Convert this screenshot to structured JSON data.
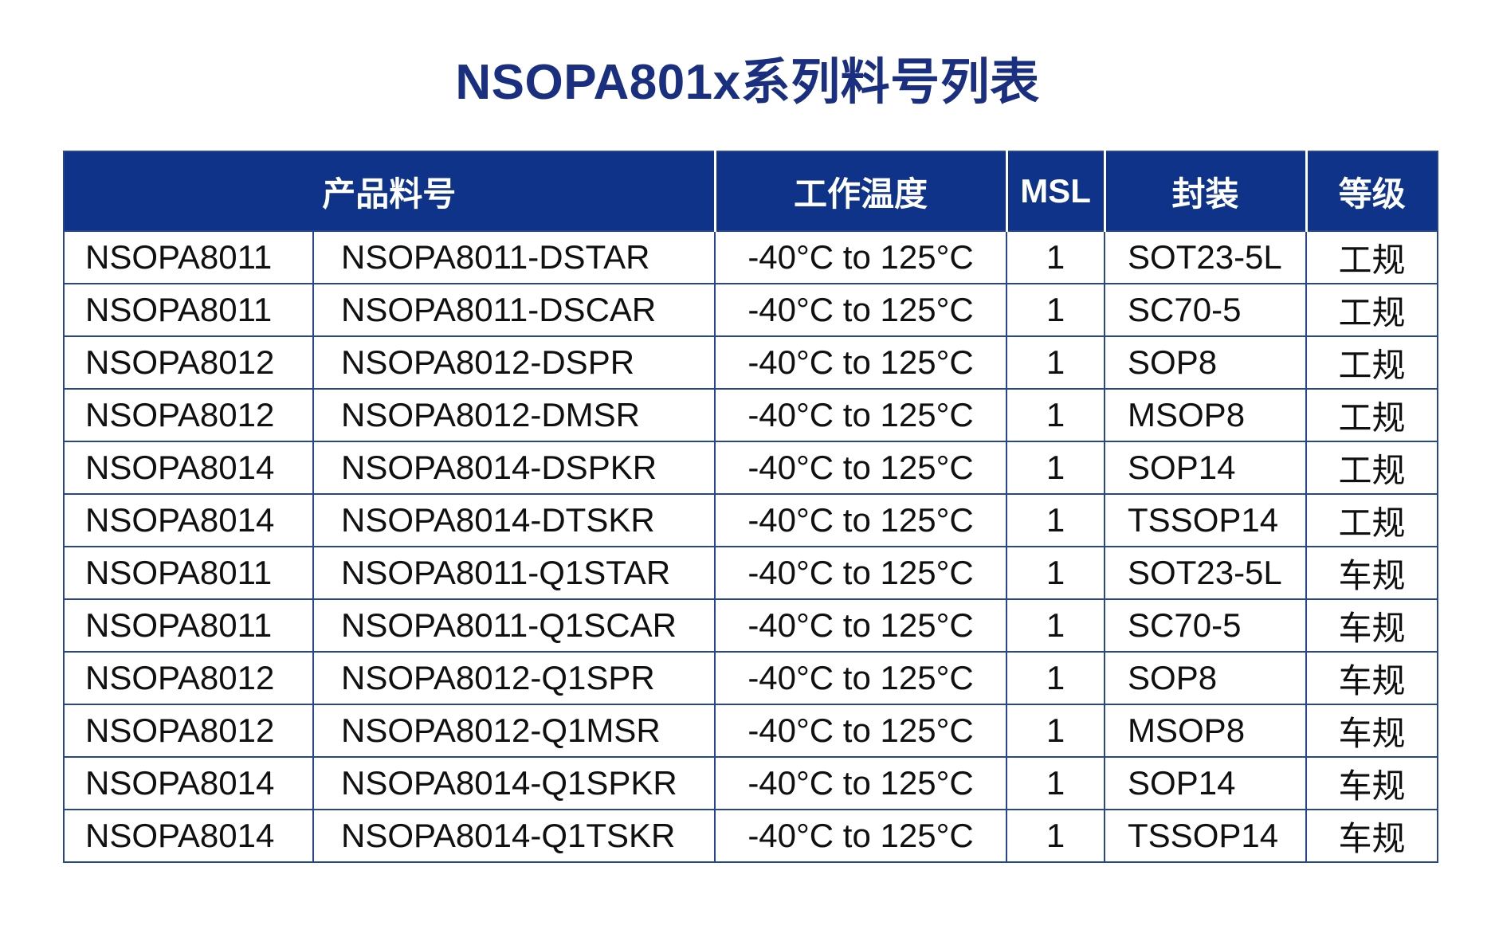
{
  "title": "NSOPA801x系列料号列表",
  "colors": {
    "header_bg": "#10338a",
    "title_text": "#1b2f80",
    "table_border": "#26449a",
    "header_text": "#ffffff",
    "body_text": "#101010"
  },
  "table": {
    "headers": {
      "product": "产品料号",
      "temp": "工作温度",
      "msl": "MSL",
      "package": "封装",
      "grade": "等级"
    },
    "rows": [
      {
        "family": "NSOPA8011",
        "part": "NSOPA8011-DSTAR",
        "temp": "-40°C to 125°C",
        "msl": "1",
        "package": "SOT23-5L",
        "grade": "工规"
      },
      {
        "family": "NSOPA8011",
        "part": "NSOPA8011-DSCAR",
        "temp": "-40°C to 125°C",
        "msl": "1",
        "package": "SC70-5",
        "grade": "工规"
      },
      {
        "family": "NSOPA8012",
        "part": "NSOPA8012-DSPR",
        "temp": "-40°C to 125°C",
        "msl": "1",
        "package": "SOP8",
        "grade": "工规"
      },
      {
        "family": "NSOPA8012",
        "part": "NSOPA8012-DMSR",
        "temp": "-40°C to 125°C",
        "msl": "1",
        "package": "MSOP8",
        "grade": "工规"
      },
      {
        "family": "NSOPA8014",
        "part": "NSOPA8014-DSPKR",
        "temp": "-40°C to 125°C",
        "msl": "1",
        "package": "SOP14",
        "grade": "工规"
      },
      {
        "family": "NSOPA8014",
        "part": "NSOPA8014-DTSKR",
        "temp": "-40°C to 125°C",
        "msl": "1",
        "package": "TSSOP14",
        "grade": "工规"
      },
      {
        "family": "NSOPA8011",
        "part": "NSOPA8011-Q1STAR",
        "temp": "-40°C to 125°C",
        "msl": "1",
        "package": "SOT23-5L",
        "grade": "车规"
      },
      {
        "family": "NSOPA8011",
        "part": "NSOPA8011-Q1SCAR",
        "temp": "-40°C to 125°C",
        "msl": "1",
        "package": "SC70-5",
        "grade": "车规"
      },
      {
        "family": "NSOPA8012",
        "part": "NSOPA8012-Q1SPR",
        "temp": "-40°C to 125°C",
        "msl": "1",
        "package": "SOP8",
        "grade": "车规"
      },
      {
        "family": "NSOPA8012",
        "part": "NSOPA8012-Q1MSR",
        "temp": "-40°C to 125°C",
        "msl": "1",
        "package": "MSOP8",
        "grade": "车规"
      },
      {
        "family": "NSOPA8014",
        "part": "NSOPA8014-Q1SPKR",
        "temp": "-40°C to 125°C",
        "msl": "1",
        "package": "SOP14",
        "grade": "车规"
      },
      {
        "family": "NSOPA8014",
        "part": "NSOPA8014-Q1TSKR",
        "temp": "-40°C to 125°C",
        "msl": "1",
        "package": "TSSOP14",
        "grade": "车规"
      }
    ]
  }
}
